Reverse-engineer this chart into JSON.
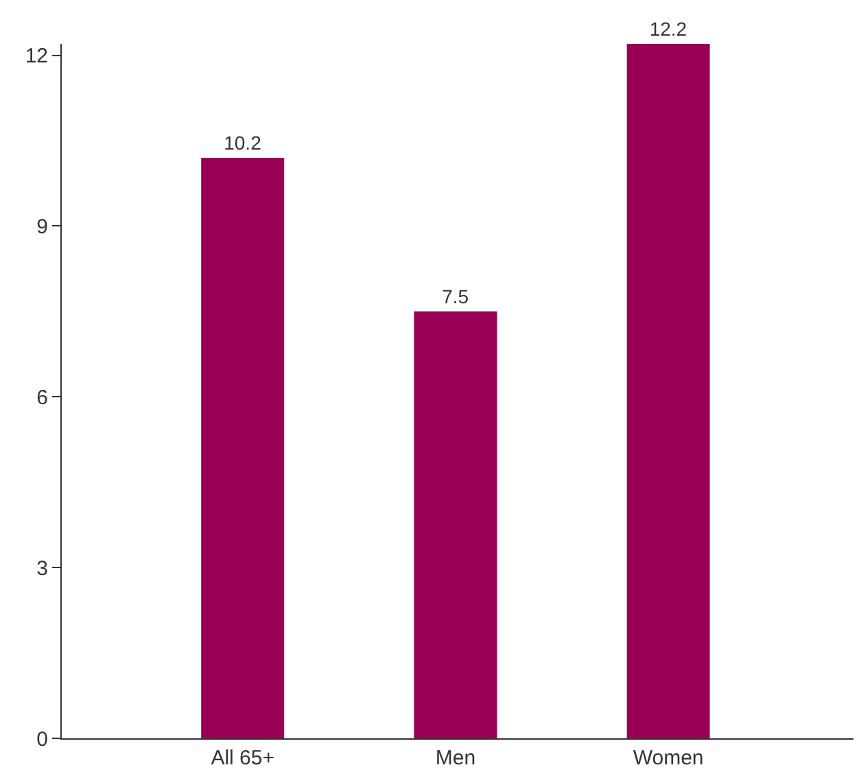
{
  "chart_data": {
    "type": "bar",
    "categories": [
      "All 65+",
      "Men",
      "Women"
    ],
    "values": [
      10.2,
      7.5,
      12.2
    ],
    "color": "#990056",
    "ylim": [
      0,
      12.2
    ],
    "yticks": [
      0,
      3,
      6,
      9,
      12
    ],
    "grid": false,
    "legend": false,
    "data_labels": true
  }
}
